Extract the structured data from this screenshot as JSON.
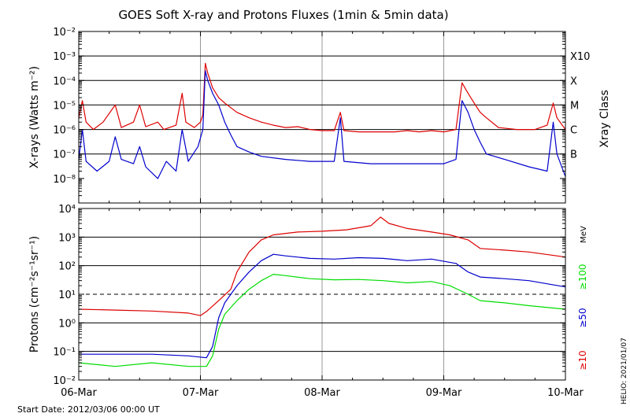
{
  "title": "GOES Soft X-ray and Protons Fluxes   (1min & 5min data)",
  "footer": {
    "start_date": "Start Date: 2012/03/06 00:00 UT",
    "stamp": "HELIO: 2021/01/07"
  },
  "colors": {
    "red": "#dd0000",
    "blue": "#0000cc",
    "green": "#00dd00",
    "grid": "#000000",
    "day_line": "#999999"
  },
  "chart_data": [
    {
      "type": "line",
      "name": "xray",
      "ylabel": "X-rays (Watts m⁻²)",
      "ylog": true,
      "ylim": [
        1e-09,
        0.01
      ],
      "xlim": [
        0,
        4
      ],
      "x_ticks": [
        "06-Mar",
        "07-Mar",
        "08-Mar",
        "09-Mar",
        "10-Mar"
      ],
      "y_ticks": [
        {
          "value": 1e-08,
          "label": "10⁻⁸"
        },
        {
          "value": 1e-07,
          "label": "10⁻⁷"
        },
        {
          "value": 1e-06,
          "label": "10⁻⁶"
        },
        {
          "value": 1e-05,
          "label": "10⁻⁵"
        },
        {
          "value": 0.0001,
          "label": "10⁻⁴"
        },
        {
          "value": 0.001,
          "label": "10⁻³"
        },
        {
          "value": 0.01,
          "label": "10⁻²"
        }
      ],
      "right_axis_title": "Xray Class",
      "right_labels": [
        {
          "value": 0.001,
          "label": "X10"
        },
        {
          "value": 0.0001,
          "label": "X"
        },
        {
          "value": 1e-05,
          "label": "M"
        },
        {
          "value": 1e-06,
          "label": "C"
        },
        {
          "value": 1e-07,
          "label": "B"
        }
      ],
      "gridlines_y": [
        1e-07,
        1e-06,
        1e-05,
        0.0001,
        0.001
      ],
      "series": [
        {
          "color": "red",
          "points": [
            [
              0,
              3e-06
            ],
            [
              0.03,
              1.5e-05
            ],
            [
              0.06,
              2e-06
            ],
            [
              0.12,
              1e-06
            ],
            [
              0.2,
              2e-06
            ],
            [
              0.3,
              1e-05
            ],
            [
              0.35,
              1.2e-06
            ],
            [
              0.45,
              2e-06
            ],
            [
              0.5,
              1e-05
            ],
            [
              0.55,
              1.3e-06
            ],
            [
              0.65,
              2e-06
            ],
            [
              0.7,
              1e-06
            ],
            [
              0.8,
              1.5e-06
            ],
            [
              0.85,
              3e-05
            ],
            [
              0.88,
              2e-06
            ],
            [
              0.95,
              1.2e-06
            ],
            [
              1.0,
              2e-06
            ],
            [
              1.02,
              4e-06
            ],
            [
              1.04,
              0.0005
            ],
            [
              1.06,
              0.0002
            ],
            [
              1.1,
              5e-05
            ],
            [
              1.15,
              2e-05
            ],
            [
              1.2,
              1.2e-05
            ],
            [
              1.3,
              5e-06
            ],
            [
              1.4,
              3e-06
            ],
            [
              1.5,
              2e-06
            ],
            [
              1.6,
              1.5e-06
            ],
            [
              1.7,
              1.2e-06
            ],
            [
              1.8,
              1.3e-06
            ],
            [
              1.9,
              1e-06
            ],
            [
              2.0,
              9e-07
            ],
            [
              2.1,
              9e-07
            ],
            [
              2.15,
              5e-06
            ],
            [
              2.18,
              9e-07
            ],
            [
              2.3,
              8e-07
            ],
            [
              2.4,
              8e-07
            ],
            [
              2.6,
              8e-07
            ],
            [
              2.7,
              9e-07
            ],
            [
              2.8,
              8e-07
            ],
            [
              2.9,
              9e-07
            ],
            [
              3.0,
              8e-07
            ],
            [
              3.1,
              1e-06
            ],
            [
              3.15,
              8e-05
            ],
            [
              3.2,
              3e-05
            ],
            [
              3.25,
              1.2e-05
            ],
            [
              3.3,
              5e-06
            ],
            [
              3.35,
              3e-06
            ],
            [
              3.45,
              1.2e-06
            ],
            [
              3.6,
              1e-06
            ],
            [
              3.75,
              1e-06
            ],
            [
              3.85,
              1.5e-06
            ],
            [
              3.9,
              1.2e-05
            ],
            [
              3.93,
              3e-06
            ],
            [
              4.0,
              1e-06
            ]
          ]
        },
        {
          "color": "blue",
          "points": [
            [
              0,
              6e-08
            ],
            [
              0.03,
              1e-06
            ],
            [
              0.06,
              5e-08
            ],
            [
              0.15,
              2e-08
            ],
            [
              0.25,
              5e-08
            ],
            [
              0.3,
              5e-07
            ],
            [
              0.35,
              6e-08
            ],
            [
              0.45,
              4e-08
            ],
            [
              0.5,
              2e-07
            ],
            [
              0.55,
              3e-08
            ],
            [
              0.65,
              1e-08
            ],
            [
              0.72,
              5e-08
            ],
            [
              0.8,
              2e-08
            ],
            [
              0.85,
              1e-06
            ],
            [
              0.9,
              5e-08
            ],
            [
              0.98,
              2e-07
            ],
            [
              1.02,
              1e-06
            ],
            [
              1.04,
              0.00025
            ],
            [
              1.06,
              0.0001
            ],
            [
              1.1,
              3e-05
            ],
            [
              1.15,
              1e-05
            ],
            [
              1.2,
              2e-06
            ],
            [
              1.25,
              6e-07
            ],
            [
              1.3,
              2e-07
            ],
            [
              1.4,
              1.2e-07
            ],
            [
              1.5,
              8e-08
            ],
            [
              1.7,
              6e-08
            ],
            [
              1.9,
              5e-08
            ],
            [
              2.1,
              5e-08
            ],
            [
              2.15,
              3e-06
            ],
            [
              2.18,
              5e-08
            ],
            [
              2.4,
              4e-08
            ],
            [
              2.6,
              4e-08
            ],
            [
              2.8,
              4e-08
            ],
            [
              3.0,
              4e-08
            ],
            [
              3.1,
              6e-08
            ],
            [
              3.15,
              1.5e-05
            ],
            [
              3.2,
              5e-06
            ],
            [
              3.25,
              1e-06
            ],
            [
              3.3,
              3e-07
            ],
            [
              3.35,
              1e-07
            ],
            [
              3.5,
              6e-08
            ],
            [
              3.7,
              3e-08
            ],
            [
              3.85,
              2e-08
            ],
            [
              3.9,
              2e-06
            ],
            [
              3.93,
              1e-07
            ],
            [
              4.0,
              1.2e-08
            ]
          ]
        }
      ]
    },
    {
      "type": "line",
      "name": "protons",
      "ylabel": "Protons (cm⁻²s⁻¹sr⁻¹)",
      "ylog": true,
      "ylim": [
        0.01,
        10000
      ],
      "xlim": [
        0,
        4
      ],
      "x_ticks": [
        "06-Mar",
        "07-Mar",
        "08-Mar",
        "09-Mar",
        "10-Mar"
      ],
      "y_ticks": [
        {
          "value": 0.01,
          "label": "10⁻²"
        },
        {
          "value": 0.1,
          "label": "10⁻¹"
        },
        {
          "value": 1,
          "label": "10⁰"
        },
        {
          "value": 10,
          "label": "10¹"
        },
        {
          "value": 100,
          "label": "10²"
        },
        {
          "value": 1000,
          "label": "10³"
        },
        {
          "value": 10000,
          "label": "10⁴"
        }
      ],
      "right_axis_title": "MeV",
      "right_legend": [
        {
          "label": "≥100",
          "color": "green"
        },
        {
          "label": "≥50",
          "color": "blue"
        },
        {
          "label": "≥10",
          "color": "red"
        }
      ],
      "gridlines_y": [
        0.1,
        1,
        100,
        1000
      ],
      "dashed_threshold": 10,
      "series": [
        {
          "color": "red",
          "points": [
            [
              0,
              3
            ],
            [
              0.3,
              2.8
            ],
            [
              0.6,
              2.6
            ],
            [
              0.9,
              2.2
            ],
            [
              1.0,
              1.8
            ],
            [
              1.05,
              2.5
            ],
            [
              1.15,
              6
            ],
            [
              1.25,
              15
            ],
            [
              1.3,
              60
            ],
            [
              1.4,
              300
            ],
            [
              1.5,
              800
            ],
            [
              1.6,
              1200
            ],
            [
              1.8,
              1500
            ],
            [
              2.0,
              1600
            ],
            [
              2.2,
              1800
            ],
            [
              2.4,
              2500
            ],
            [
              2.48,
              5000
            ],
            [
              2.55,
              3000
            ],
            [
              2.7,
              2000
            ],
            [
              2.9,
              1500
            ],
            [
              3.05,
              1200
            ],
            [
              3.2,
              800
            ],
            [
              3.3,
              400
            ],
            [
              3.5,
              350
            ],
            [
              3.7,
              300
            ],
            [
              4.0,
              200
            ]
          ]
        },
        {
          "color": "blue",
          "points": [
            [
              0,
              0.08
            ],
            [
              0.3,
              0.08
            ],
            [
              0.6,
              0.08
            ],
            [
              0.9,
              0.07
            ],
            [
              1.05,
              0.06
            ],
            [
              1.1,
              0.15
            ],
            [
              1.15,
              1.5
            ],
            [
              1.2,
              5
            ],
            [
              1.3,
              20
            ],
            [
              1.4,
              60
            ],
            [
              1.5,
              150
            ],
            [
              1.6,
              250
            ],
            [
              1.7,
              220
            ],
            [
              1.9,
              180
            ],
            [
              2.1,
              170
            ],
            [
              2.3,
              190
            ],
            [
              2.5,
              180
            ],
            [
              2.7,
              150
            ],
            [
              2.9,
              170
            ],
            [
              3.1,
              120
            ],
            [
              3.2,
              60
            ],
            [
              3.3,
              40
            ],
            [
              3.5,
              35
            ],
            [
              3.7,
              30
            ],
            [
              4.0,
              18
            ]
          ]
        },
        {
          "color": "green",
          "points": [
            [
              0,
              0.04
            ],
            [
              0.3,
              0.03
            ],
            [
              0.6,
              0.04
            ],
            [
              0.9,
              0.03
            ],
            [
              1.05,
              0.03
            ],
            [
              1.1,
              0.07
            ],
            [
              1.15,
              0.6
            ],
            [
              1.2,
              2
            ],
            [
              1.3,
              6
            ],
            [
              1.4,
              15
            ],
            [
              1.5,
              30
            ],
            [
              1.6,
              50
            ],
            [
              1.7,
              45
            ],
            [
              1.9,
              35
            ],
            [
              2.1,
              32
            ],
            [
              2.3,
              33
            ],
            [
              2.5,
              30
            ],
            [
              2.7,
              25
            ],
            [
              2.9,
              28
            ],
            [
              3.05,
              20
            ],
            [
              3.2,
              10
            ],
            [
              3.3,
              6
            ],
            [
              3.5,
              5
            ],
            [
              3.7,
              4
            ],
            [
              4.0,
              3
            ]
          ]
        }
      ]
    }
  ]
}
